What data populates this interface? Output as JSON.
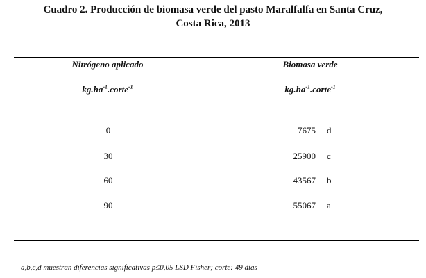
{
  "title": {
    "line1": "Cuadro 2. Producción de biomasa verde del pasto Maralfalfa en Santa Cruz,",
    "line2": "Costa Rica, 2013"
  },
  "table": {
    "columns": [
      {
        "name": "Nitrógeno aplicado",
        "unit_base": "kg.ha",
        "unit_exp1": "-1",
        "unit_mid": ".corte",
        "unit_exp2": "-1"
      },
      {
        "name": "Biomasa verde",
        "unit_base": "kg.ha",
        "unit_exp1": "-1",
        "unit_mid": ".corte",
        "unit_exp2": "-1"
      }
    ],
    "rows": [
      {
        "nitrogen": "0",
        "biomass": "7675",
        "group": "d"
      },
      {
        "nitrogen": "30",
        "biomass": "25900",
        "group": "c"
      },
      {
        "nitrogen": "60",
        "biomass": "43567",
        "group": "b"
      },
      {
        "nitrogen": "90",
        "biomass": "55067",
        "group": "a"
      }
    ]
  },
  "footnote": "a,b,c,d muestran diferencias significativas p≤0,05 LSD Fisher;   corte: 49 días"
}
